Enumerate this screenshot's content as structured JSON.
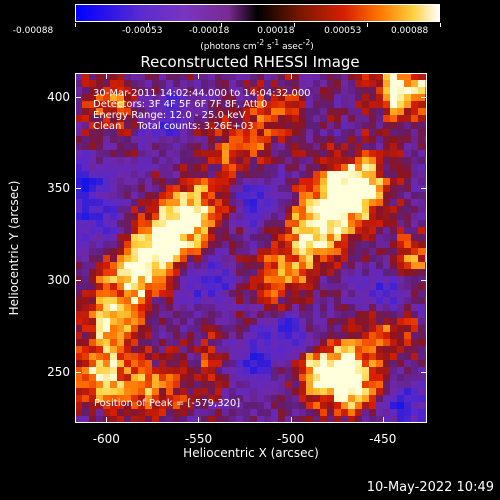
{
  "colorbar": {
    "ticks": [
      "-0.00088",
      "-0.00053",
      "-0.00018",
      "0.00018",
      "0.00053",
      "0.00088"
    ],
    "units_prefix": "(photons cm",
    "units_exp1": "-2",
    "units_mid": " s",
    "units_exp2": "-1",
    "units_mid2": " asec",
    "units_exp3": "-2",
    "units_suffix": ")"
  },
  "title": "Reconstructed RHESSI Image",
  "annotations": {
    "time_range": "30-Mar-2011 14:02:44.000 to 14:04:32.000",
    "detectors": "Detectors: 3F 4F 5F 6F 7F 8F, Att 0",
    "energy": "Energy Range: 12.0 - 25.0 keV",
    "method": "Clean     Total counts: 3.26E+03",
    "peak": "Position of Peak = [-579,320]"
  },
  "footer_date": "10-May-2022 10:49",
  "chart_data": {
    "type": "heatmap",
    "title": "Reconstructed RHESSI Image",
    "xlabel": "Heliocentric X (arcsec)",
    "ylabel": "Heliocentric Y (arcsec)",
    "xlim": [
      -617,
      -426
    ],
    "ylim": [
      222,
      413
    ],
    "xticks": [
      "-600",
      "-550",
      "-500",
      "-450"
    ],
    "yticks": [
      "250",
      "300",
      "350",
      "400"
    ],
    "x_tick_values": [
      -600,
      -550,
      -500,
      -450
    ],
    "y_tick_values": [
      250,
      300,
      350,
      400
    ],
    "colorbar_range": [
      -0.00088,
      0.00088
    ],
    "peak_position": [
      -579,
      320
    ],
    "bright_regions": [
      {
        "x": -568,
        "y": 322,
        "level": 1.0
      },
      {
        "x": -551,
        "y": 338,
        "level": 0.8
      },
      {
        "x": -585,
        "y": 305,
        "level": 0.85
      },
      {
        "x": -598,
        "y": 278,
        "level": 0.75
      },
      {
        "x": -603,
        "y": 246,
        "level": 0.8
      },
      {
        "x": -575,
        "y": 240,
        "level": 0.55
      },
      {
        "x": -530,
        "y": 370,
        "level": 0.55
      },
      {
        "x": -508,
        "y": 392,
        "level": 0.45
      },
      {
        "x": -476,
        "y": 342,
        "level": 0.9
      },
      {
        "x": -462,
        "y": 352,
        "level": 0.85
      },
      {
        "x": -490,
        "y": 322,
        "level": 0.75
      },
      {
        "x": -507,
        "y": 300,
        "level": 0.55
      },
      {
        "x": -440,
        "y": 404,
        "level": 0.95
      },
      {
        "x": -432,
        "y": 310,
        "level": 0.6
      },
      {
        "x": -481,
        "y": 250,
        "level": 0.95
      },
      {
        "x": -464,
        "y": 242,
        "level": 0.7
      },
      {
        "x": -448,
        "y": 272,
        "level": 0.55
      },
      {
        "x": -598,
        "y": 395,
        "level": 0.55
      },
      {
        "x": -540,
        "y": 255,
        "level": 0.4
      }
    ],
    "dark_regions": [
      {
        "x": -612,
        "y": 352,
        "level": 0.6
      },
      {
        "x": -520,
        "y": 342,
        "level": 0.55
      },
      {
        "x": -522,
        "y": 255,
        "level": 0.6
      },
      {
        "x": -500,
        "y": 270,
        "level": 0.5
      },
      {
        "x": -448,
        "y": 293,
        "level": 0.6
      },
      {
        "x": -545,
        "y": 300,
        "level": 0.5
      },
      {
        "x": -568,
        "y": 388,
        "level": 0.45
      },
      {
        "x": -438,
        "y": 232,
        "level": 0.55
      },
      {
        "x": -605,
        "y": 330,
        "level": 0.4
      }
    ]
  }
}
